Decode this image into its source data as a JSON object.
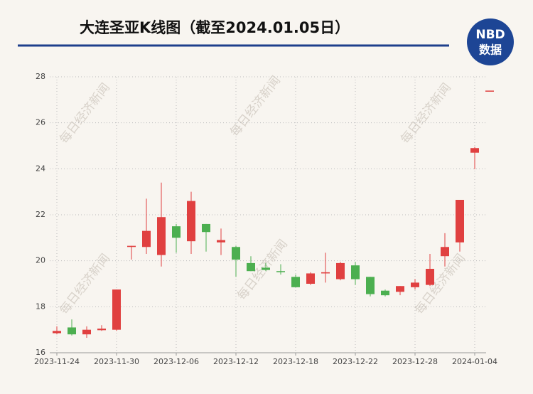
{
  "chart_data": {
    "type": "candlestick",
    "title": "大连圣亚K线图（截至2024.01.05日）",
    "logo_top": "NBD",
    "logo_bottom": "数据",
    "watermark": "每日经济新闻",
    "categories": [
      "2023-11-24",
      null,
      null,
      null,
      "2023-11-30",
      null,
      null,
      null,
      "2023-12-06",
      null,
      null,
      null,
      "2023-12-12",
      null,
      null,
      null,
      "2023-12-18",
      null,
      null,
      null,
      "2023-12-22",
      null,
      null,
      null,
      "2023-12-28",
      null,
      null,
      null,
      "2024-01-04",
      null
    ],
    "open": [
      16.85,
      17.1,
      16.8,
      16.98,
      17.0,
      20.6,
      20.6,
      20.25,
      21.5,
      20.85,
      21.6,
      20.8,
      20.6,
      19.9,
      19.7,
      19.55,
      19.3,
      19.0,
      19.45,
      19.2,
      19.8,
      19.3,
      18.7,
      18.65,
      18.85,
      18.95,
      20.2,
      20.8,
      24.7,
      27.4
    ],
    "high": [
      17.15,
      17.45,
      17.15,
      17.2,
      18.75,
      20.65,
      22.7,
      23.4,
      21.6,
      23.0,
      21.6,
      21.4,
      20.65,
      20.2,
      19.9,
      19.85,
      19.4,
      19.5,
      20.35,
      19.95,
      19.95,
      19.3,
      18.75,
      18.9,
      19.2,
      20.3,
      21.2,
      22.65,
      24.95,
      27.4
    ],
    "low": [
      16.8,
      16.75,
      16.65,
      16.95,
      16.95,
      20.05,
      20.3,
      19.75,
      20.35,
      20.3,
      20.4,
      20.25,
      19.3,
      19.55,
      19.55,
      19.4,
      18.85,
      18.95,
      19.05,
      19.15,
      18.95,
      18.45,
      18.45,
      18.5,
      18.75,
      18.9,
      19.75,
      20.4,
      23.98,
      27.4
    ],
    "close": [
      16.95,
      16.8,
      17.0,
      17.05,
      18.75,
      20.65,
      21.3,
      21.9,
      21.0,
      22.6,
      21.25,
      20.9,
      20.05,
      19.55,
      19.6,
      19.53,
      18.85,
      19.45,
      19.5,
      19.9,
      19.2,
      18.55,
      18.5,
      18.9,
      19.05,
      19.65,
      20.6,
      22.65,
      24.9,
      27.4
    ],
    "up_color": "#e04040",
    "down_color": "#4caf50",
    "ylim": [
      16,
      28
    ],
    "yticks": [
      16,
      18,
      20,
      22,
      24,
      26,
      28
    ],
    "grid": true
  }
}
